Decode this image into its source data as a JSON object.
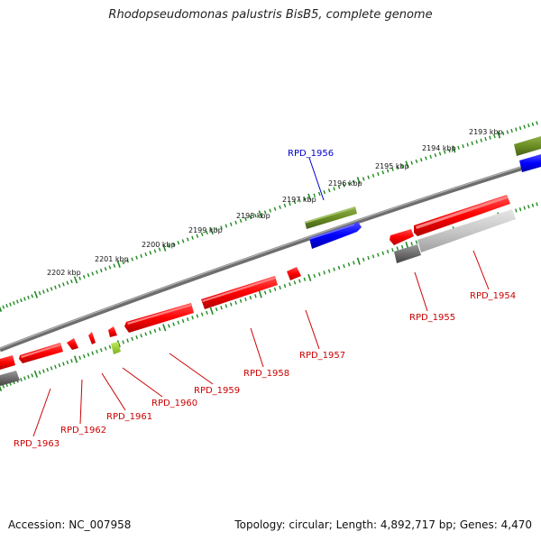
{
  "title": "Rhodopseudomonas palustris BisB5, complete genome",
  "footer": {
    "accession": "Accession: NC_007958",
    "summary": "Topology: circular; Length: 4,892,717 bp; Genes: 4,470"
  },
  "colors": {
    "backbone": "#808080",
    "tick": "#1f8a1f",
    "gene_red": "#ff0000",
    "gene_olive": "#6b8e23",
    "gene_blue": "#0000ff",
    "gene_gray": "#808080",
    "gene_lightgray": "#c8c8c8",
    "gene_lime": "#9acd32",
    "label_red": "#cc0000",
    "label_blue": "#0000cc"
  },
  "kbp_labels": [
    "2193 kbp",
    "2194 kbp",
    "2195 kbp",
    "2196 kbp",
    "2197 kbp",
    "2198 kbp",
    "2199 kbp",
    "2200 kbp",
    "2201 kbp",
    "2202 kbp"
  ],
  "gene_labels": [
    "RPD_1956",
    "RPD_1954",
    "RPD_1955",
    "RPD_1957",
    "RPD_1958",
    "RPD_1959",
    "RPD_1960",
    "RPD_1961",
    "RPD_1962",
    "RPD_1963"
  ]
}
